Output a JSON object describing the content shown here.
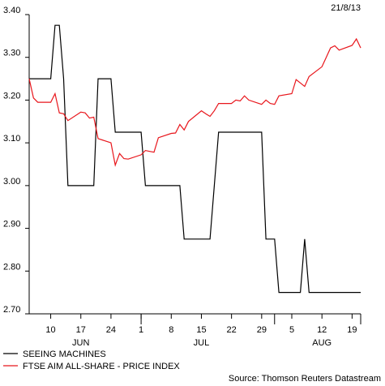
{
  "chart_data": {
    "type": "line",
    "date_label": "21/8/13",
    "source": "Source: Thomson Reuters Datastream",
    "ylim": [
      2.7,
      3.4
    ],
    "yticks": [
      "2.70",
      "2.80",
      "2.90",
      "3.00",
      "3.10",
      "3.20",
      "3.30",
      "3.40"
    ],
    "ytick_values": [
      2.7,
      2.8,
      2.9,
      3.0,
      3.1,
      3.2,
      3.3,
      3.4
    ],
    "xlim": [
      "2013-06-05",
      "2013-08-21"
    ],
    "xticks": [
      {
        "date": "2013-06-10",
        "label": "10"
      },
      {
        "date": "2013-06-17",
        "label": "17"
      },
      {
        "date": "2013-06-24",
        "label": "24"
      },
      {
        "date": "2013-07-01",
        "label": "1"
      },
      {
        "date": "2013-07-08",
        "label": "8"
      },
      {
        "date": "2013-07-15",
        "label": "15"
      },
      {
        "date": "2013-07-22",
        "label": "22"
      },
      {
        "date": "2013-07-29",
        "label": "29"
      },
      {
        "date": "2013-08-05",
        "label": "5"
      },
      {
        "date": "2013-08-12",
        "label": "12"
      },
      {
        "date": "2013-08-19",
        "label": "19"
      }
    ],
    "month_labels": [
      {
        "date": "2013-06-17",
        "label": "JUN"
      },
      {
        "date": "2013-07-15",
        "label": "JUL"
      },
      {
        "date": "2013-08-12",
        "label": "AUG"
      }
    ],
    "series": [
      {
        "name": "SEEING MACHINES",
        "color": "#000000",
        "points": [
          [
            "2013-06-05",
            3.25
          ],
          [
            "2013-06-06",
            3.25
          ],
          [
            "2013-06-07",
            3.25
          ],
          [
            "2013-06-10",
            3.25
          ],
          [
            "2013-06-11",
            3.375
          ],
          [
            "2013-06-12",
            3.375
          ],
          [
            "2013-06-13",
            3.25
          ],
          [
            "2013-06-14",
            3.0
          ],
          [
            "2013-06-17",
            3.0
          ],
          [
            "2013-06-18",
            3.0
          ],
          [
            "2013-06-19",
            3.0
          ],
          [
            "2013-06-20",
            3.0
          ],
          [
            "2013-06-21",
            3.25
          ],
          [
            "2013-06-24",
            3.25
          ],
          [
            "2013-06-25",
            3.125
          ],
          [
            "2013-06-26",
            3.125
          ],
          [
            "2013-06-27",
            3.125
          ],
          [
            "2013-06-28",
            3.125
          ],
          [
            "2013-07-01",
            3.125
          ],
          [
            "2013-07-02",
            3.0
          ],
          [
            "2013-07-03",
            3.0
          ],
          [
            "2013-07-04",
            3.0
          ],
          [
            "2013-07-05",
            3.0
          ],
          [
            "2013-07-08",
            3.0
          ],
          [
            "2013-07-09",
            3.0
          ],
          [
            "2013-07-10",
            3.0
          ],
          [
            "2013-07-11",
            2.875
          ],
          [
            "2013-07-12",
            2.875
          ],
          [
            "2013-07-15",
            2.875
          ],
          [
            "2013-07-16",
            2.875
          ],
          [
            "2013-07-17",
            2.875
          ],
          [
            "2013-07-18",
            3.0
          ],
          [
            "2013-07-19",
            3.125
          ],
          [
            "2013-07-22",
            3.125
          ],
          [
            "2013-07-23",
            3.125
          ],
          [
            "2013-07-24",
            3.125
          ],
          [
            "2013-07-25",
            3.125
          ],
          [
            "2013-07-26",
            3.125
          ],
          [
            "2013-07-29",
            3.125
          ],
          [
            "2013-07-30",
            2.875
          ],
          [
            "2013-07-31",
            2.875
          ],
          [
            "2013-08-01",
            2.875
          ],
          [
            "2013-08-02",
            2.75
          ],
          [
            "2013-08-05",
            2.75
          ],
          [
            "2013-08-06",
            2.75
          ],
          [
            "2013-08-07",
            2.75
          ],
          [
            "2013-08-08",
            2.875
          ],
          [
            "2013-08-09",
            2.75
          ],
          [
            "2013-08-12",
            2.75
          ],
          [
            "2013-08-13",
            2.75
          ],
          [
            "2013-08-14",
            2.75
          ],
          [
            "2013-08-15",
            2.75
          ],
          [
            "2013-08-16",
            2.75
          ],
          [
            "2013-08-19",
            2.75
          ],
          [
            "2013-08-20",
            2.75
          ],
          [
            "2013-08-21",
            2.75
          ]
        ]
      },
      {
        "name": "FTSE AIM ALL-SHARE - PRICE INDEX",
        "color": "#e8161c",
        "points": [
          [
            "2013-06-05",
            3.25
          ],
          [
            "2013-06-06",
            3.205
          ],
          [
            "2013-06-07",
            3.195
          ],
          [
            "2013-06-10",
            3.195
          ],
          [
            "2013-06-11",
            3.215
          ],
          [
            "2013-06-12",
            3.17
          ],
          [
            "2013-06-13",
            3.168
          ],
          [
            "2013-06-14",
            3.152
          ],
          [
            "2013-06-17",
            3.172
          ],
          [
            "2013-06-18",
            3.17
          ],
          [
            "2013-06-19",
            3.158
          ],
          [
            "2013-06-20",
            3.16
          ],
          [
            "2013-06-21",
            3.11
          ],
          [
            "2013-06-24",
            3.1
          ],
          [
            "2013-06-25",
            3.048
          ],
          [
            "2013-06-26",
            3.075
          ],
          [
            "2013-06-27",
            3.063
          ],
          [
            "2013-06-28",
            3.062
          ],
          [
            "2013-07-01",
            3.072
          ],
          [
            "2013-07-02",
            3.082
          ],
          [
            "2013-07-03",
            3.08
          ],
          [
            "2013-07-04",
            3.078
          ],
          [
            "2013-07-05",
            3.112
          ],
          [
            "2013-07-08",
            3.122
          ],
          [
            "2013-07-09",
            3.123
          ],
          [
            "2013-07-10",
            3.143
          ],
          [
            "2013-07-11",
            3.13
          ],
          [
            "2013-07-12",
            3.15
          ],
          [
            "2013-07-15",
            3.175
          ],
          [
            "2013-07-16",
            3.168
          ],
          [
            "2013-07-17",
            3.162
          ],
          [
            "2013-07-18",
            3.175
          ],
          [
            "2013-07-19",
            3.192
          ],
          [
            "2013-07-22",
            3.192
          ],
          [
            "2013-07-23",
            3.2
          ],
          [
            "2013-07-24",
            3.198
          ],
          [
            "2013-07-25",
            3.21
          ],
          [
            "2013-07-26",
            3.2
          ],
          [
            "2013-07-29",
            3.19
          ],
          [
            "2013-07-30",
            3.2
          ],
          [
            "2013-07-31",
            3.192
          ],
          [
            "2013-08-01",
            3.19
          ],
          [
            "2013-08-02",
            3.21
          ],
          [
            "2013-08-05",
            3.215
          ],
          [
            "2013-08-06",
            3.248
          ],
          [
            "2013-08-07",
            3.24
          ],
          [
            "2013-08-08",
            3.232
          ],
          [
            "2013-08-09",
            3.255
          ],
          [
            "2013-08-12",
            3.278
          ],
          [
            "2013-08-13",
            3.3
          ],
          [
            "2013-08-14",
            3.322
          ],
          [
            "2013-08-15",
            3.327
          ],
          [
            "2013-08-16",
            3.317
          ],
          [
            "2013-08-19",
            3.328
          ],
          [
            "2013-08-20",
            3.343
          ],
          [
            "2013-08-21",
            3.322
          ]
        ]
      }
    ],
    "grid": false,
    "legend_position": "bottom-left"
  }
}
